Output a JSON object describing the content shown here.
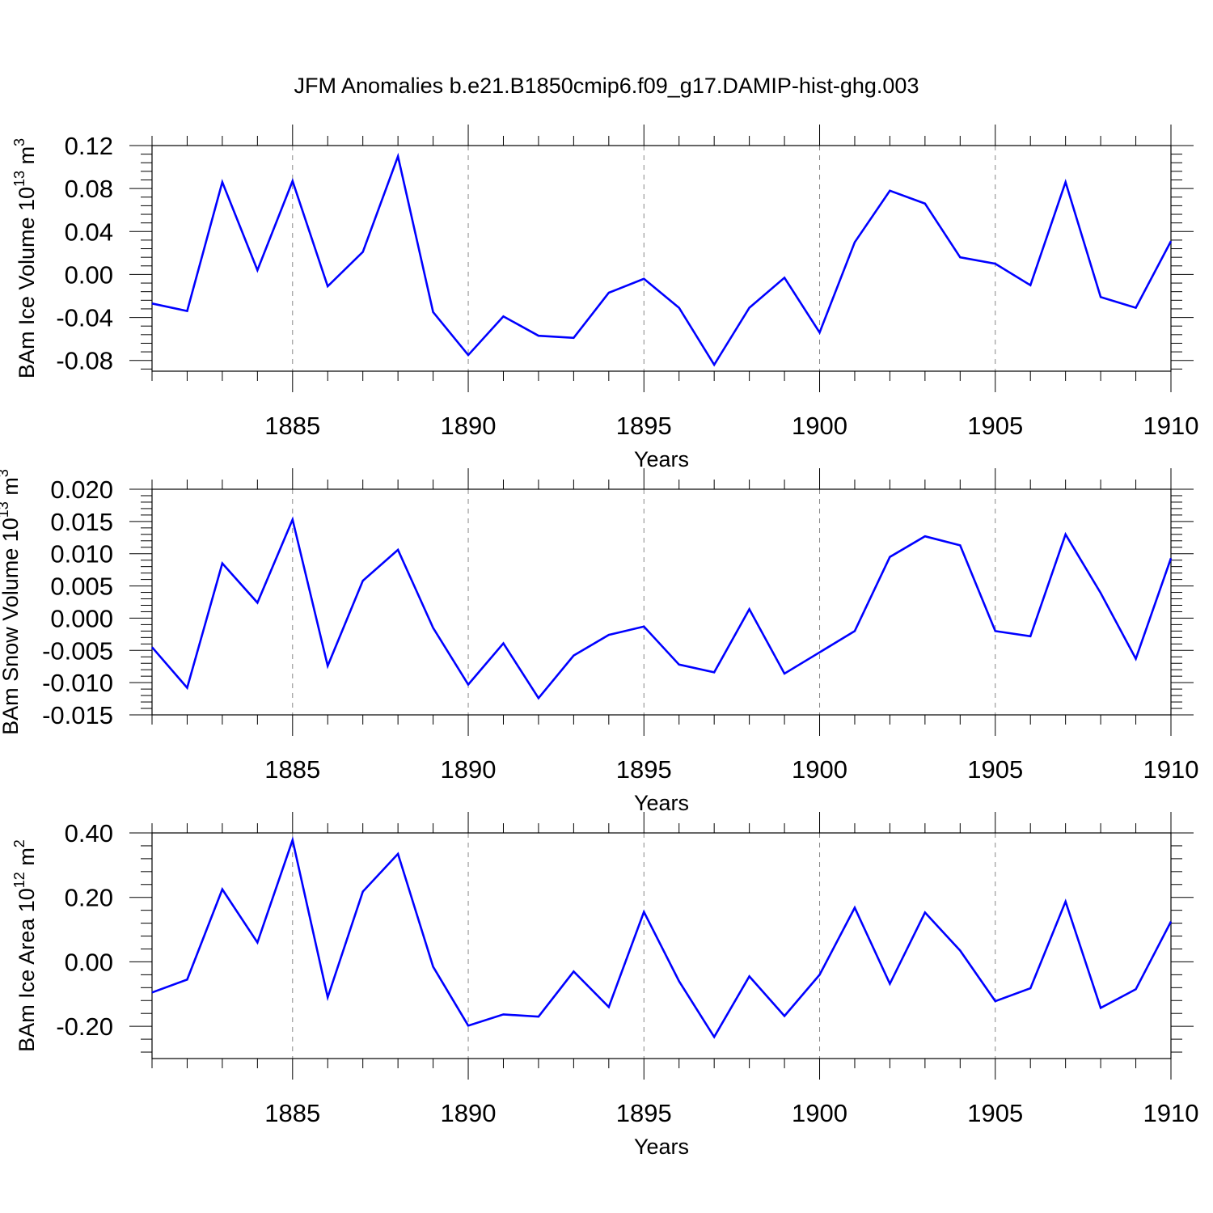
{
  "title": "JFM Anomalies b.e21.B1850cmip6.f09_g17.DAMIP-hist-ghg.003",
  "colors": {
    "line": "#0000ff",
    "axis": "#000000",
    "grid": "#888888",
    "background": "#ffffff"
  },
  "chart_data": [
    {
      "type": "line",
      "ylabel_main": "BAm Ice Volume 10",
      "ylabel_exp": "13",
      "ylabel_unit": " m",
      "ylabel_unit_exp": "3",
      "xlabel": "Years",
      "xlim": [
        1881,
        1910
      ],
      "ylim": [
        -0.09,
        0.12
      ],
      "yticks": [
        -0.08,
        -0.04,
        0.0,
        0.04,
        0.08,
        0.12
      ],
      "ytick_labels": [
        "-0.08",
        "-0.04",
        "0.00",
        "0.04",
        "0.08",
        "0.12"
      ],
      "xticks": [
        1885,
        1890,
        1895,
        1900,
        1905,
        1910
      ],
      "xtick_labels": [
        "1885",
        "1890",
        "1895",
        "1900",
        "1905",
        "1910"
      ],
      "x": [
        1881,
        1882,
        1883,
        1884,
        1885,
        1886,
        1887,
        1888,
        1889,
        1890,
        1891,
        1892,
        1893,
        1894,
        1895,
        1896,
        1897,
        1898,
        1899,
        1900,
        1901,
        1902,
        1903,
        1904,
        1905,
        1906,
        1907,
        1908,
        1909,
        1910
      ],
      "series": [
        {
          "name": "BAm Ice Volume",
          "values": [
            -0.027,
            -0.034,
            0.086,
            0.004,
            0.087,
            -0.011,
            0.021,
            0.11,
            -0.035,
            -0.075,
            -0.039,
            -0.057,
            -0.059,
            -0.017,
            -0.004,
            -0.031,
            -0.084,
            -0.031,
            -0.003,
            -0.054,
            0.03,
            0.078,
            0.066,
            0.016,
            0.01,
            -0.01,
            0.086,
            -0.021,
            -0.031,
            0.031
          ]
        }
      ]
    },
    {
      "type": "line",
      "ylabel_main": "BAm Snow Volume 10",
      "ylabel_exp": "13",
      "ylabel_unit": " m",
      "ylabel_unit_exp": "3",
      "xlabel": "Years",
      "xlim": [
        1881,
        1910
      ],
      "ylim": [
        -0.015,
        0.02
      ],
      "yticks": [
        -0.015,
        -0.01,
        -0.005,
        0.0,
        0.005,
        0.01,
        0.015,
        0.02
      ],
      "ytick_labels": [
        "-0.015",
        "-0.010",
        "-0.005",
        "0.000",
        "0.005",
        "0.010",
        "0.015",
        "0.020"
      ],
      "xticks": [
        1885,
        1890,
        1895,
        1900,
        1905,
        1910
      ],
      "xtick_labels": [
        "1885",
        "1890",
        "1895",
        "1900",
        "1905",
        "1910"
      ],
      "x": [
        1881,
        1882,
        1883,
        1884,
        1885,
        1886,
        1887,
        1888,
        1889,
        1890,
        1891,
        1892,
        1893,
        1894,
        1895,
        1896,
        1897,
        1898,
        1899,
        1900,
        1901,
        1902,
        1903,
        1904,
        1905,
        1906,
        1907,
        1908,
        1909,
        1910
      ],
      "series": [
        {
          "name": "BAm Snow Volume",
          "values": [
            -0.0045,
            -0.0108,
            0.0085,
            0.0024,
            0.0153,
            -0.0074,
            0.0058,
            0.0106,
            -0.0015,
            -0.0103,
            -0.0039,
            -0.0124,
            -0.0058,
            -0.0026,
            -0.0013,
            -0.0072,
            -0.0084,
            0.0014,
            -0.0086,
            -0.0053,
            -0.002,
            0.0095,
            0.0127,
            0.0113,
            -0.002,
            -0.0028,
            0.013,
            0.0039,
            -0.0063,
            0.0093
          ]
        }
      ]
    },
    {
      "type": "line",
      "ylabel_main": "BAm Ice Area 10",
      "ylabel_exp": "12",
      "ylabel_unit": " m",
      "ylabel_unit_exp": "2",
      "xlabel": "Years",
      "xlim": [
        1881,
        1910
      ],
      "ylim": [
        -0.3,
        0.4
      ],
      "yticks": [
        -0.2,
        0.0,
        0.2,
        0.4
      ],
      "ytick_labels": [
        "-0.20",
        "0.00",
        "0.20",
        "0.40"
      ],
      "xticks": [
        1885,
        1890,
        1895,
        1900,
        1905,
        1910
      ],
      "xtick_labels": [
        "1885",
        "1890",
        "1895",
        "1900",
        "1905",
        "1910"
      ],
      "x": [
        1881,
        1882,
        1883,
        1884,
        1885,
        1886,
        1887,
        1888,
        1889,
        1890,
        1891,
        1892,
        1893,
        1894,
        1895,
        1896,
        1897,
        1898,
        1899,
        1900,
        1901,
        1902,
        1903,
        1904,
        1905,
        1906,
        1907,
        1908,
        1909,
        1910
      ],
      "series": [
        {
          "name": "BAm Ice Area",
          "values": [
            -0.095,
            -0.055,
            0.225,
            0.06,
            0.378,
            -0.11,
            0.218,
            0.335,
            -0.015,
            -0.198,
            -0.163,
            -0.17,
            -0.03,
            -0.14,
            0.155,
            -0.06,
            -0.233,
            -0.045,
            -0.168,
            -0.04,
            0.168,
            -0.068,
            0.153,
            0.035,
            -0.122,
            -0.082,
            0.187,
            -0.143,
            -0.085,
            0.125
          ]
        }
      ]
    }
  ]
}
